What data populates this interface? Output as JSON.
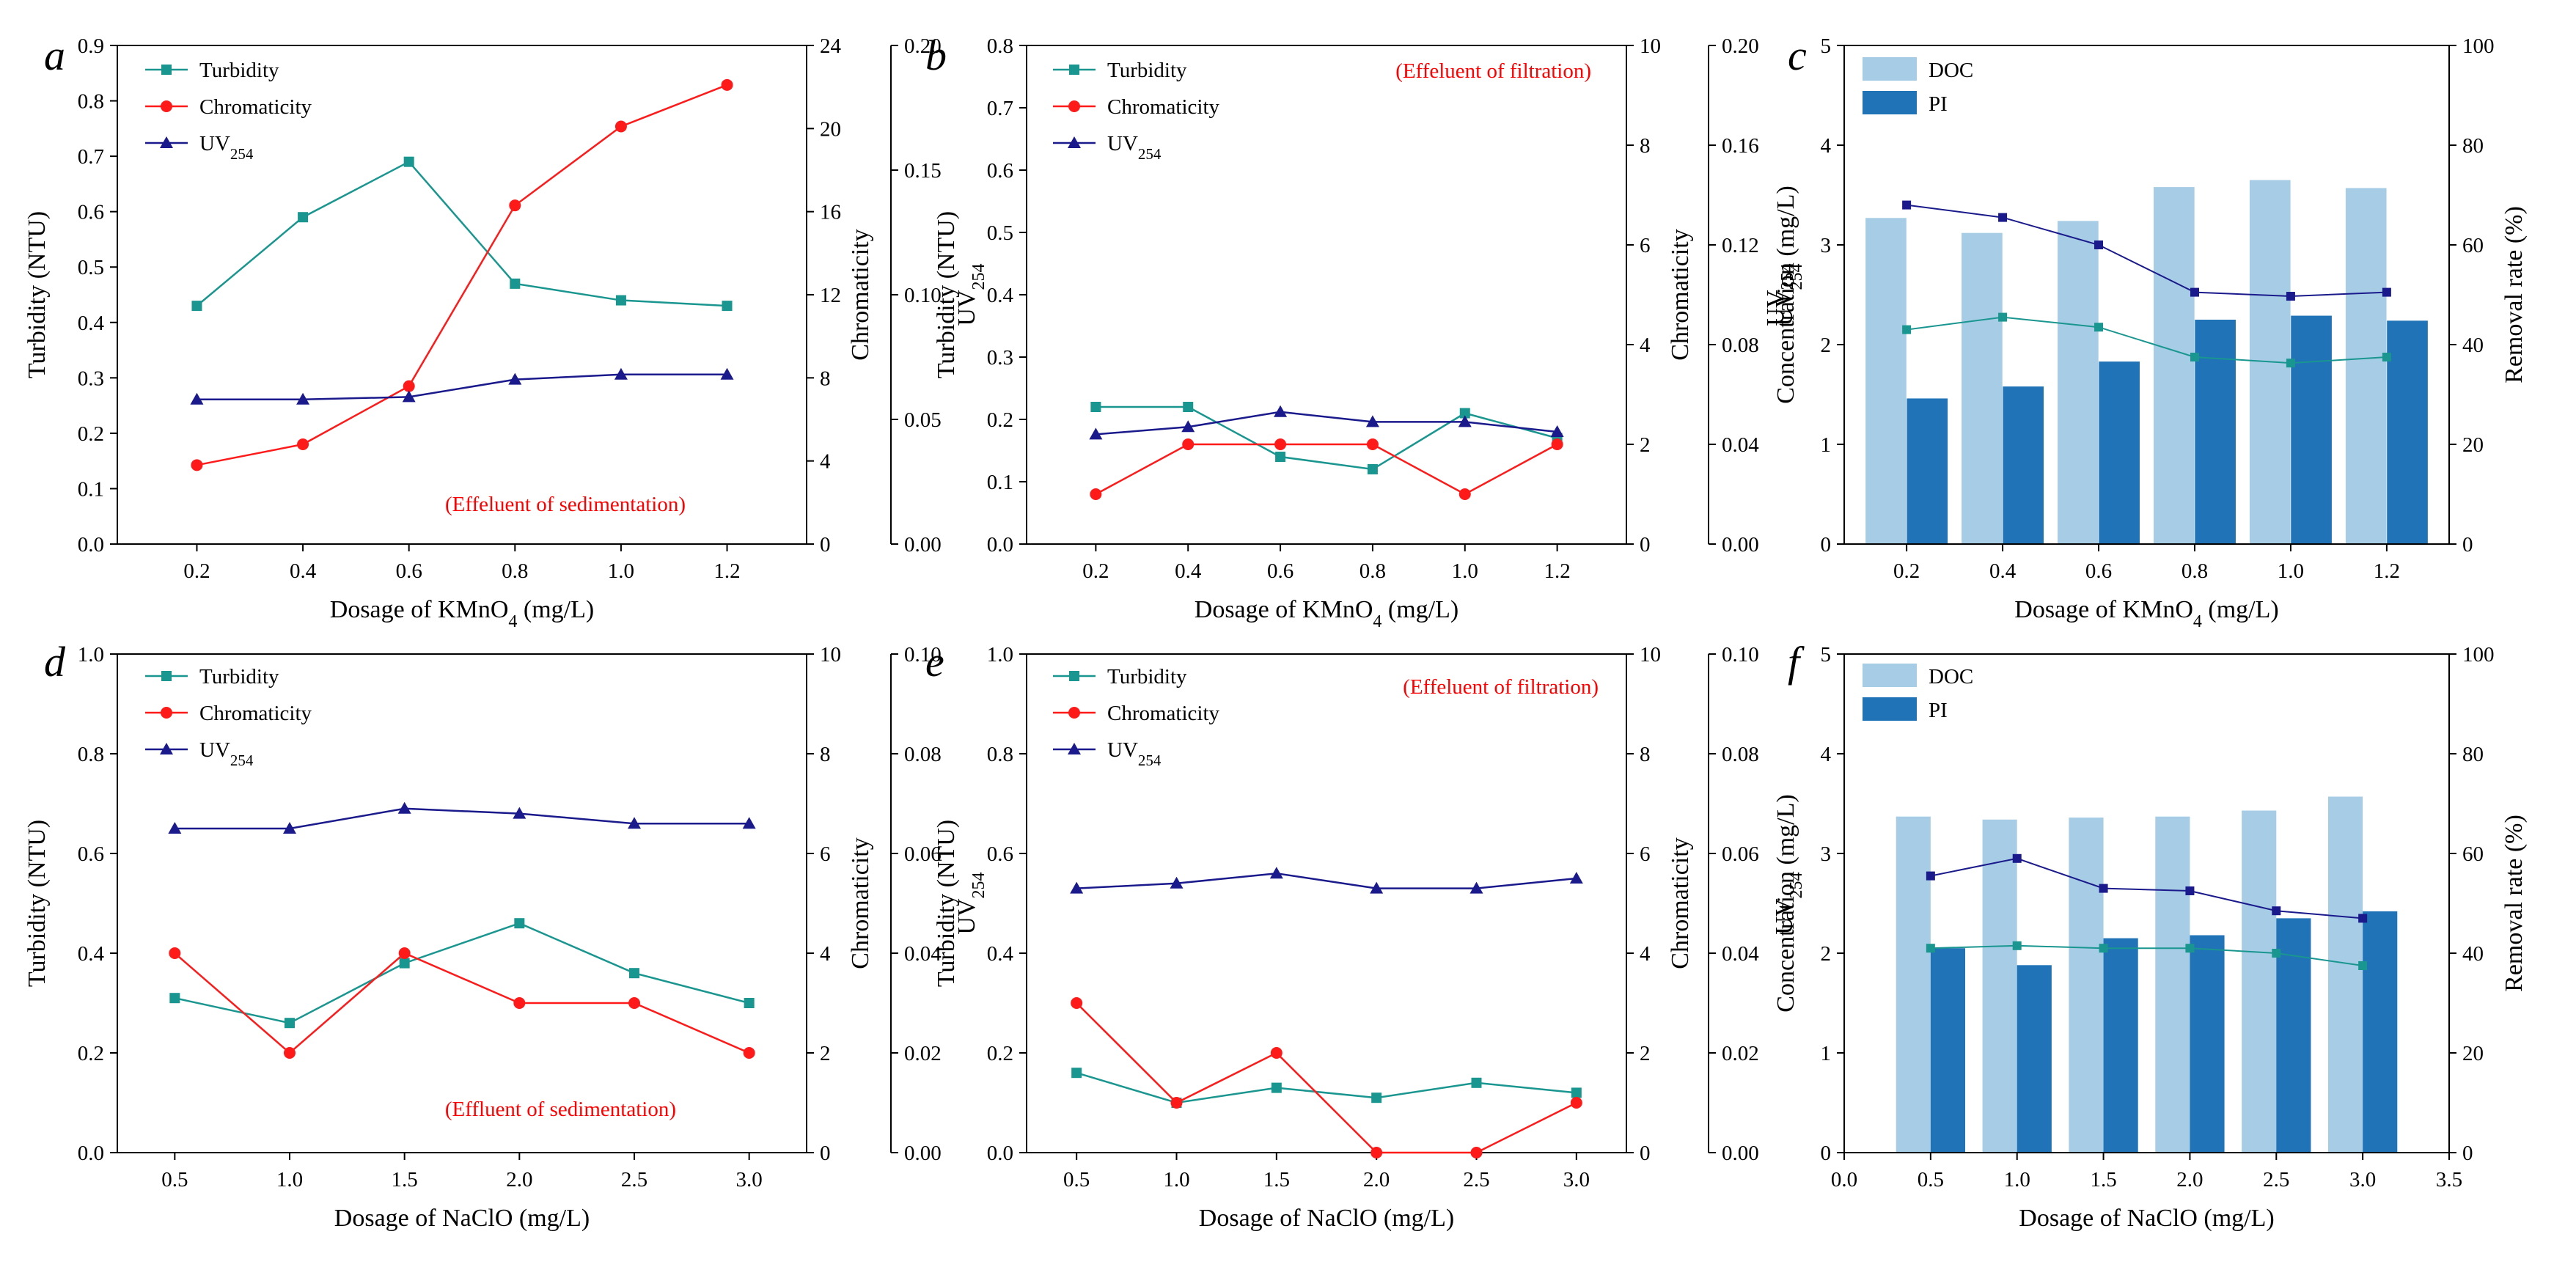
{
  "chart_data": [
    {
      "type": "line",
      "panel": "a",
      "annotation": "(Effeluent of sedimentation)",
      "xlabel": "Dosage of KMnO4 (mg/L)",
      "xlabel_main": "Dosage of KMnO",
      "xlabel_sub": "4",
      "xlabel_tail": " (mg/L)",
      "x": [
        0.2,
        0.4,
        0.6,
        0.8,
        1.0,
        1.2
      ],
      "xlim": [
        0.05,
        1.35
      ],
      "xticks": [
        0.2,
        0.4,
        0.6,
        0.8,
        1.0,
        1.2
      ],
      "xtick_labels": [
        "0.2",
        "0.4",
        "0.6",
        "0.8",
        "1.0",
        "1.2"
      ],
      "axes": [
        {
          "side": "left",
          "title": "Turbidity (NTU)",
          "ylim": [
            0,
            0.9
          ],
          "ticks": [
            0,
            0.1,
            0.2,
            0.3,
            0.4,
            0.5,
            0.6,
            0.7,
            0.8,
            0.9
          ],
          "tick_labels": [
            "0.0",
            "0.1",
            "0.2",
            "0.3",
            "0.4",
            "0.5",
            "0.6",
            "0.7",
            "0.8",
            "0.9"
          ]
        },
        {
          "side": "right1",
          "title": "Chromaticity",
          "ylim": [
            0,
            24
          ],
          "ticks": [
            0,
            4,
            8,
            12,
            16,
            20,
            24
          ],
          "tick_labels": [
            "0",
            "4",
            "8",
            "12",
            "16",
            "20",
            "24"
          ]
        },
        {
          "side": "right2",
          "title": "UV254",
          "title_main": "UV",
          "title_sub": "254",
          "ylim": [
            0,
            0.2
          ],
          "ticks": [
            0,
            0.05,
            0.1,
            0.15,
            0.2
          ],
          "tick_labels": [
            "0.00",
            "0.05",
            "0.10",
            "0.15",
            "0.20"
          ]
        }
      ],
      "series": [
        {
          "name": "Turbidity",
          "name_main": "Turbidity",
          "name_sub": "",
          "axis": 0,
          "color": "#1a9690",
          "marker": "square",
          "values": [
            0.43,
            0.59,
            0.69,
            0.47,
            0.44,
            0.43
          ]
        },
        {
          "name": "Chromaticity",
          "name_main": "Chromaticity",
          "name_sub": "",
          "axis": 1,
          "color": "#ff1a1a",
          "marker": "circle",
          "values": [
            3.8,
            4.8,
            7.6,
            16.3,
            20.1,
            22.1
          ]
        },
        {
          "name": "UV254",
          "name_main": "UV",
          "name_sub": "254",
          "axis": 2,
          "color": "#1a1a8c",
          "marker": "triangle",
          "values": [
            0.058,
            0.058,
            0.059,
            0.066,
            0.068,
            0.068
          ]
        }
      ]
    },
    {
      "type": "line",
      "panel": "b",
      "annotation": "(Effeluent of filtration)",
      "xlabel": "Dosage of KMnO4 (mg/L)",
      "xlabel_main": "Dosage of KMnO",
      "xlabel_sub": "4",
      "xlabel_tail": " (mg/L)",
      "x": [
        0.2,
        0.4,
        0.6,
        0.8,
        1.0,
        1.2
      ],
      "xlim": [
        0.05,
        1.35
      ],
      "xticks": [
        0.2,
        0.4,
        0.6,
        0.8,
        1.0,
        1.2
      ],
      "xtick_labels": [
        "0.2",
        "0.4",
        "0.6",
        "0.8",
        "1.0",
        "1.2"
      ],
      "axes": [
        {
          "side": "left",
          "title": "Turbidity (NTU)",
          "ylim": [
            0,
            0.8
          ],
          "ticks": [
            0,
            0.1,
            0.2,
            0.3,
            0.4,
            0.5,
            0.6,
            0.7,
            0.8
          ],
          "tick_labels": [
            "0.0",
            "0.1",
            "0.2",
            "0.3",
            "0.4",
            "0.5",
            "0.6",
            "0.7",
            "0.8"
          ]
        },
        {
          "side": "right1",
          "title": "Chromaticity",
          "ylim": [
            0,
            10
          ],
          "ticks": [
            0,
            2,
            4,
            6,
            8,
            10
          ],
          "tick_labels": [
            "0",
            "2",
            "4",
            "6",
            "8",
            "10"
          ]
        },
        {
          "side": "right2",
          "title": "UV254",
          "title_main": "UV",
          "title_sub": "254",
          "ylim": [
            0,
            0.2
          ],
          "ticks": [
            0,
            0.04,
            0.08,
            0.12,
            0.16,
            0.2
          ],
          "tick_labels": [
            "0.00",
            "0.04",
            "0.08",
            "0.12",
            "0.16",
            "0.20"
          ]
        }
      ],
      "series": [
        {
          "name": "Turbidity",
          "name_main": "Turbidity",
          "name_sub": "",
          "axis": 0,
          "color": "#1a9690",
          "marker": "square",
          "values": [
            0.22,
            0.22,
            0.14,
            0.12,
            0.21,
            0.17
          ]
        },
        {
          "name": "Chromaticity",
          "name_main": "Chromaticity",
          "name_sub": "",
          "axis": 1,
          "color": "#ff1a1a",
          "marker": "circle",
          "values": [
            1.0,
            2.0,
            2.0,
            2.0,
            1.0,
            2.0
          ]
        },
        {
          "name": "UV254",
          "name_main": "UV",
          "name_sub": "254",
          "axis": 2,
          "color": "#1a1a8c",
          "marker": "triangle",
          "values": [
            0.044,
            0.047,
            0.053,
            0.049,
            0.049,
            0.045
          ]
        }
      ]
    },
    {
      "type": "bar",
      "panel": "c",
      "xlabel": "Dosage of KMnO4 (mg/L)",
      "xlabel_main": "Dosage of KMnO",
      "xlabel_sub": "4",
      "xlabel_tail": " (mg/L)",
      "x": [
        0.2,
        0.4,
        0.6,
        0.8,
        1.0,
        1.2
      ],
      "xlim": [
        0.07,
        1.33
      ],
      "xticks": [
        0.2,
        0.4,
        0.6,
        0.8,
        1.0,
        1.2
      ],
      "xtick_labels": [
        "0.2",
        "0.4",
        "0.6",
        "0.8",
        "1.0",
        "1.2"
      ],
      "bar_width": 0.085,
      "axes": [
        {
          "side": "left",
          "title": "Concentration (mg/L)",
          "ylim": [
            0,
            5
          ],
          "ticks": [
            0,
            1,
            2,
            3,
            4,
            5
          ],
          "tick_labels": [
            "0",
            "1",
            "2",
            "3",
            "4",
            "5"
          ]
        },
        {
          "side": "right1",
          "title": "Removal rate (%)",
          "ylim": [
            0,
            100
          ],
          "ticks": [
            0,
            20,
            40,
            60,
            80,
            100
          ],
          "tick_labels": [
            "0",
            "20",
            "40",
            "60",
            "80",
            "100"
          ]
        }
      ],
      "extra_ylabel": {
        "text": "UV254",
        "main": "UV",
        "sub": "254"
      },
      "bars": [
        {
          "name": "DOC",
          "color": "#a6cde5",
          "offset": -0.043,
          "values": [
            3.27,
            3.12,
            3.24,
            3.58,
            3.65,
            3.57
          ]
        },
        {
          "name": "PI",
          "color": "#1f73b6",
          "offset": 0.043,
          "values": [
            1.46,
            1.58,
            1.83,
            2.25,
            2.29,
            2.24
          ]
        }
      ],
      "series": [
        {
          "name": "UV254 removal",
          "axis": 1,
          "color": "#1a1a8c",
          "marker": "square",
          "values": [
            68,
            65.5,
            60,
            50.5,
            49.7,
            50.5
          ]
        },
        {
          "name": "DOC removal",
          "axis": 1,
          "color": "#1a9690",
          "marker": "square",
          "values": [
            43,
            45.5,
            43.5,
            37.5,
            36.3,
            37.5
          ]
        }
      ]
    },
    {
      "type": "line",
      "panel": "d",
      "annotation": "(Effluent of sedimentation)",
      "xlabel": "Dosage of NaClO (mg/L)",
      "xlabel_main": "Dosage of NaClO (mg/L)",
      "xlabel_sub": "",
      "xlabel_tail": "",
      "x": [
        0.5,
        1.0,
        1.5,
        2.0,
        2.5,
        3.0
      ],
      "xlim": [
        0.25,
        3.25
      ],
      "xticks": [
        0.5,
        1.0,
        1.5,
        2.0,
        2.5,
        3.0
      ],
      "xtick_labels": [
        "0.5",
        "1.0",
        "1.5",
        "2.0",
        "2.5",
        "3.0"
      ],
      "axes": [
        {
          "side": "left",
          "title": "Turbidity (NTU)",
          "ylim": [
            0,
            1.0
          ],
          "ticks": [
            0,
            0.2,
            0.4,
            0.6,
            0.8,
            1.0
          ],
          "tick_labels": [
            "0.0",
            "0.2",
            "0.4",
            "0.6",
            "0.8",
            "1.0"
          ]
        },
        {
          "side": "right1",
          "title": "Chromaticity",
          "ylim": [
            0,
            10
          ],
          "ticks": [
            0,
            2,
            4,
            6,
            8,
            10
          ],
          "tick_labels": [
            "0",
            "2",
            "4",
            "6",
            "8",
            "10"
          ]
        },
        {
          "side": "right2",
          "title": "UV254",
          "title_main": "UV",
          "title_sub": "254",
          "ylim": [
            0,
            0.1
          ],
          "ticks": [
            0,
            0.02,
            0.04,
            0.06,
            0.08,
            0.1
          ],
          "tick_labels": [
            "0.00",
            "0.02",
            "0.04",
            "0.06",
            "0.08",
            "0.10"
          ]
        }
      ],
      "series": [
        {
          "name": "Turbidity",
          "name_main": "Turbidity",
          "name_sub": "",
          "axis": 0,
          "color": "#1a9690",
          "marker": "square",
          "values": [
            0.31,
            0.26,
            0.38,
            0.46,
            0.36,
            0.3
          ]
        },
        {
          "name": "Chromaticity",
          "name_main": "Chromaticity",
          "name_sub": "",
          "axis": 1,
          "color": "#ff1a1a",
          "marker": "circle",
          "values": [
            4.0,
            2.0,
            4.0,
            3.0,
            3.0,
            2.0
          ]
        },
        {
          "name": "UV254",
          "name_main": "UV",
          "name_sub": "254",
          "axis": 2,
          "color": "#1a1a8c",
          "marker": "triangle",
          "values": [
            0.065,
            0.065,
            0.069,
            0.068,
            0.066,
            0.066
          ]
        }
      ]
    },
    {
      "type": "line",
      "panel": "e",
      "annotation": "(Effeluent of filtration)",
      "xlabel": "Dosage of NaClO (mg/L)",
      "xlabel_main": "Dosage of NaClO (mg/L)",
      "xlabel_sub": "",
      "xlabel_tail": "",
      "x": [
        0.5,
        1.0,
        1.5,
        2.0,
        2.5,
        3.0
      ],
      "xlim": [
        0.25,
        3.25
      ],
      "xticks": [
        0.5,
        1.0,
        1.5,
        2.0,
        2.5,
        3.0
      ],
      "xtick_labels": [
        "0.5",
        "1.0",
        "1.5",
        "2.0",
        "2.5",
        "3.0"
      ],
      "axes": [
        {
          "side": "left",
          "title": "Turbidity (NTU)",
          "ylim": [
            0,
            1.0
          ],
          "ticks": [
            0,
            0.2,
            0.4,
            0.6,
            0.8,
            1.0
          ],
          "tick_labels": [
            "0.0",
            "0.2",
            "0.4",
            "0.6",
            "0.8",
            "1.0"
          ]
        },
        {
          "side": "right1",
          "title": "Chromaticity",
          "ylim": [
            0,
            10
          ],
          "ticks": [
            0,
            2,
            4,
            6,
            8,
            10
          ],
          "tick_labels": [
            "0",
            "2",
            "4",
            "6",
            "8",
            "10"
          ]
        },
        {
          "side": "right2",
          "title": "UV254",
          "title_main": "UV",
          "title_sub": "254",
          "ylim": [
            0,
            0.1
          ],
          "ticks": [
            0,
            0.02,
            0.04,
            0.06,
            0.08,
            0.1
          ],
          "tick_labels": [
            "0.00",
            "0.02",
            "0.04",
            "0.06",
            "0.08",
            "0.10"
          ]
        }
      ],
      "series": [
        {
          "name": "Turbidity",
          "name_main": "Turbidity",
          "name_sub": "",
          "axis": 0,
          "color": "#1a9690",
          "marker": "square",
          "values": [
            0.16,
            0.1,
            0.13,
            0.11,
            0.14,
            0.12
          ]
        },
        {
          "name": "Chromaticity",
          "name_main": "Chromaticity",
          "name_sub": "",
          "axis": 1,
          "color": "#ff1a1a",
          "marker": "circle",
          "values": [
            3.0,
            1.0,
            2.0,
            0.0,
            0.0,
            1.0
          ]
        },
        {
          "name": "UV254",
          "name_main": "UV",
          "name_sub": "254",
          "axis": 2,
          "color": "#1a1a8c",
          "marker": "triangle",
          "values": [
            0.053,
            0.054,
            0.056,
            0.053,
            0.053,
            0.055
          ]
        }
      ]
    },
    {
      "type": "bar",
      "panel": "f",
      "xlabel": "Dosage of NaClO (mg/L)",
      "xlabel_main": "Dosage of NaClO (mg/L)",
      "xlabel_sub": "",
      "xlabel_tail": "",
      "x": [
        0.5,
        1.0,
        1.5,
        2.0,
        2.5,
        3.0
      ],
      "xlim": [
        0,
        3.5
      ],
      "xticks": [
        0,
        0.5,
        1.0,
        1.5,
        2.0,
        2.5,
        3.0,
        3.5
      ],
      "xtick_labels": [
        "0.0",
        "0.5",
        "1.0",
        "1.5",
        "2.0",
        "2.5",
        "3.0",
        "3.5"
      ],
      "bar_width": 0.2,
      "axes": [
        {
          "side": "left",
          "title": "Concentration (mg/L)",
          "ylim": [
            0,
            5
          ],
          "ticks": [
            0,
            1,
            2,
            3,
            4,
            5
          ],
          "tick_labels": [
            "0",
            "1",
            "2",
            "3",
            "4",
            "5"
          ]
        },
        {
          "side": "right1",
          "title": "Removal rate (%)",
          "ylim": [
            0,
            100
          ],
          "ticks": [
            0,
            20,
            40,
            60,
            80,
            100
          ],
          "tick_labels": [
            "0",
            "20",
            "40",
            "60",
            "80",
            "100"
          ]
        }
      ],
      "bars": [
        {
          "name": "DOC",
          "color": "#a6cde5",
          "offset": -0.1,
          "values": [
            3.37,
            3.34,
            3.36,
            3.37,
            3.43,
            3.57
          ]
        },
        {
          "name": "PI",
          "color": "#1f73b6",
          "offset": 0.1,
          "values": [
            2.05,
            1.88,
            2.15,
            2.18,
            2.35,
            2.42
          ]
        }
      ],
      "series": [
        {
          "name": "UV254 removal",
          "axis": 1,
          "color": "#1a1a8c",
          "marker": "square",
          "values": [
            55.5,
            59,
            53,
            52.5,
            48.5,
            47
          ]
        },
        {
          "name": "DOC removal",
          "axis": 1,
          "color": "#1a9690",
          "marker": "square",
          "values": [
            41,
            41.5,
            41,
            41,
            40,
            37.5
          ]
        }
      ]
    }
  ]
}
